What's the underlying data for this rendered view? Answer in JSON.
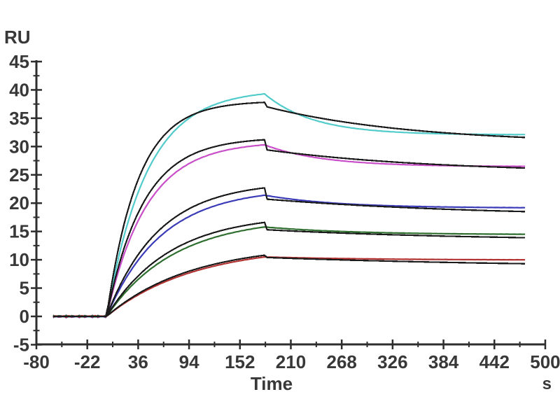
{
  "chart_data": {
    "type": "line",
    "title": "",
    "ylabel": "RU",
    "xlabel": "Time",
    "x_unit": "s",
    "xlim": [
      -80,
      500
    ],
    "ylim": [
      -5,
      45
    ],
    "x_ticks": [
      -80,
      -22,
      36,
      94,
      152,
      210,
      268,
      326,
      384,
      442,
      500
    ],
    "y_ticks": [
      -5,
      0,
      5,
      10,
      15,
      20,
      25,
      30,
      35,
      40,
      45
    ],
    "x_minor_tick_step": 29,
    "y_minor_tick_step": 2.5,
    "grid": false,
    "legend": false,
    "axis_color": "#2e2e2e",
    "text_color": "#383838",
    "phases": {
      "baseline_start_s": -61,
      "association_start_s": 0,
      "association_end_s": 180,
      "dissociation_end_s": 478
    },
    "series": [
      {
        "name": "trace-cyan-data",
        "kind": "data",
        "color": "#52cbcb",
        "k_on_obs": 0.022,
        "peak_ru": 39.3,
        "k_diss": 0.018,
        "end_ru": 32.1
      },
      {
        "name": "trace-cyan-fit",
        "kind": "fit",
        "color": "#1b1b1b",
        "k_on_obs": 0.028,
        "peak_ru": 37.8,
        "drop_ru": 37.0,
        "k_diss": 0.006,
        "end_ru": 31.6
      },
      {
        "name": "trace-magenta-data",
        "kind": "data",
        "color": "#c94fc9",
        "k_on_obs": 0.022,
        "peak_ru": 30.3,
        "k_diss": 0.015,
        "end_ru": 26.5
      },
      {
        "name": "trace-magenta-fit",
        "kind": "fit",
        "color": "#1b1b1b",
        "k_on_obs": 0.024,
        "peak_ru": 31.2,
        "drop_ru": 29.4,
        "k_diss": 0.005,
        "end_ru": 26.2
      },
      {
        "name": "trace-blue-data",
        "kind": "data",
        "color": "#3b3bb8",
        "k_on_obs": 0.016,
        "peak_ru": 21.4,
        "k_diss": 0.012,
        "end_ru": 19.2
      },
      {
        "name": "trace-blue-fit",
        "kind": "fit",
        "color": "#1b1b1b",
        "k_on_obs": 0.017,
        "peak_ru": 22.7,
        "drop_ru": 20.7,
        "k_diss": 0.004,
        "end_ru": 18.5
      },
      {
        "name": "trace-green-data",
        "kind": "data",
        "color": "#2f6f2f",
        "k_on_obs": 0.013,
        "peak_ru": 15.8,
        "k_diss": 0.01,
        "end_ru": 14.5
      },
      {
        "name": "trace-green-fit",
        "kind": "fit",
        "color": "#1b1b1b",
        "k_on_obs": 0.014,
        "peak_ru": 16.6,
        "drop_ru": 15.3,
        "k_diss": 0.004,
        "end_ru": 13.9
      },
      {
        "name": "trace-red-data",
        "kind": "data",
        "color": "#b23232",
        "k_on_obs": 0.01,
        "peak_ru": 10.5,
        "k_diss": 0.008,
        "end_ru": 10.0
      },
      {
        "name": "trace-red-fit",
        "kind": "fit",
        "color": "#1b1b1b",
        "k_on_obs": 0.0105,
        "peak_ru": 10.8,
        "drop_ru": 10.4,
        "k_diss": 0.003,
        "end_ru": 9.3
      }
    ]
  }
}
